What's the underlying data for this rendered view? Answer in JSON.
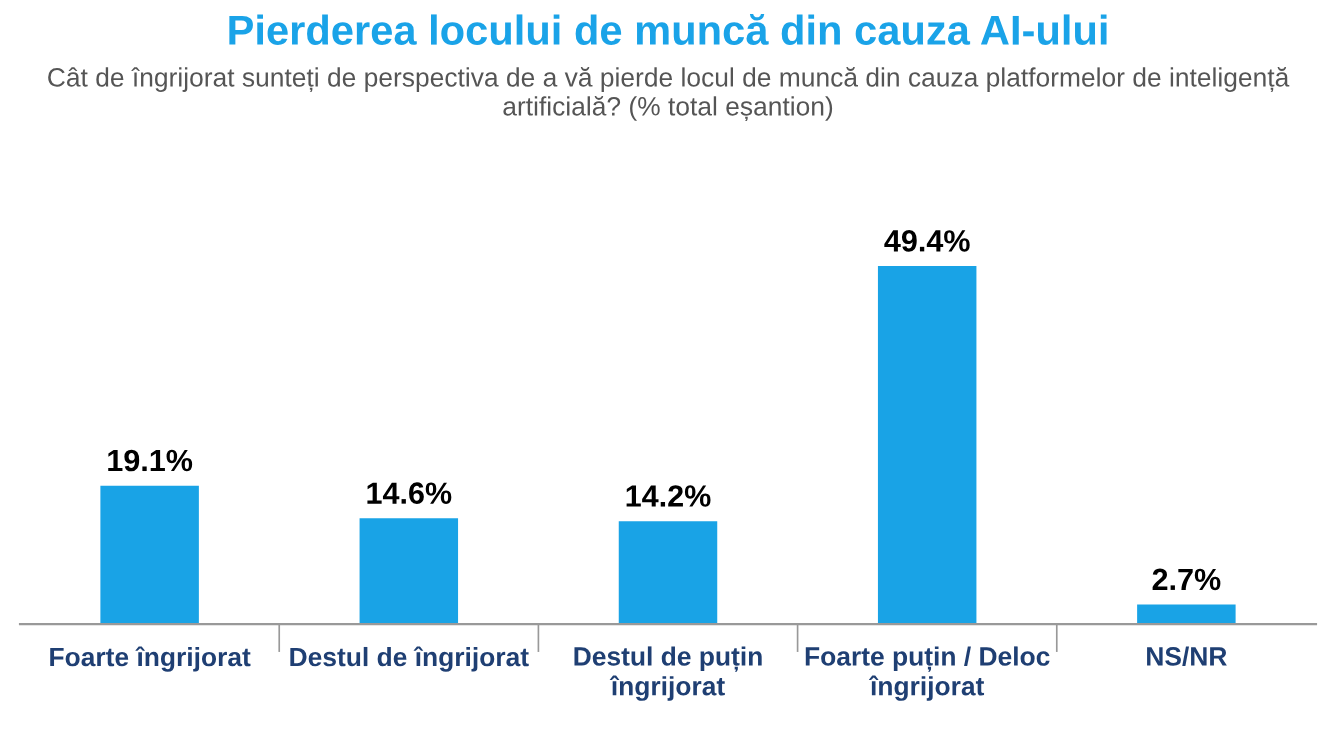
{
  "chart_data": {
    "type": "bar",
    "title": "Pierderea locului de muncă din cauza AI-ului",
    "subtitle": "Cât de îngrijorat sunteți de perspectiva de a vă pierde locul de muncă din cauza platformelor de inteligență artificială? (% total eșantion)",
    "categories": [
      "Foarte îngrijorat",
      "Destul de îngrijorat",
      "Destul de puțin\nîngrijorat",
      "Foarte puțin / Deloc\nîngrijorat",
      "NS/NR"
    ],
    "values": [
      19.1,
      14.6,
      14.2,
      49.4,
      2.7
    ],
    "value_labels": [
      "19.1%",
      "14.6%",
      "14.2%",
      "49.4%",
      "2.7%"
    ],
    "color": "#19a3e6",
    "grid": false,
    "legend": false
  }
}
